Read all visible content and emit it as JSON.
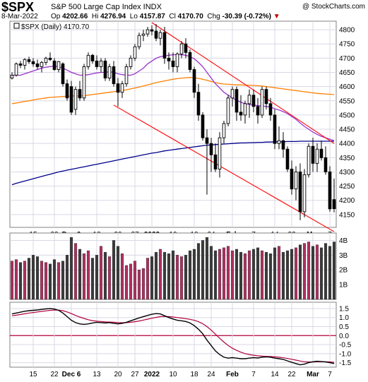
{
  "header": {
    "symbol": "$SPX",
    "description": "S&P 500 Large Cap Index  INDX",
    "date": "8-Mar-2022",
    "open_label": "Op",
    "open": "4202.66",
    "high_label": "Hi",
    "high": "4276.94",
    "low_label": "Lo",
    "low": "4157.87",
    "close_label": "Cl",
    "close": "4170.70",
    "change_label": "Chg",
    "change": "-30.39 (-0.72%)",
    "copyright": "@ StockCharts.com"
  },
  "colors": {
    "up": "#000000",
    "down": "#000000",
    "vol_up": "#b03060",
    "vol_down": "#3a3a3a",
    "ma20": "#9933cc",
    "ma50": "#ff7f00",
    "ma200": "#00008b",
    "trend": "#ff0000",
    "macd": "#000000",
    "signal": "#b0003a",
    "zero": "#b0003a",
    "grid": "#d8d8e6"
  },
  "chart_data": {
    "type": "candlestick",
    "legend": "$SPX (Daily) 4170.70",
    "price_axis": {
      "ylim": [
        4105,
        4830
      ],
      "ticks": [
        4150,
        4200,
        4250,
        4300,
        4350,
        4400,
        4450,
        4500,
        4550,
        4600,
        4650,
        4700,
        4750,
        4800
      ]
    },
    "x_ticks": [
      {
        "i": 5,
        "label": "15",
        "bold": false
      },
      {
        "i": 10,
        "label": "22",
        "bold": false
      },
      {
        "i": 14,
        "label": "Dec 6",
        "bold": true
      },
      {
        "i": 20,
        "label": "13",
        "bold": false
      },
      {
        "i": 25,
        "label": "20",
        "bold": false
      },
      {
        "i": 29,
        "label": "27",
        "bold": false
      },
      {
        "i": 33,
        "label": "2022",
        "bold": true
      },
      {
        "i": 38,
        "label": "10",
        "bold": false
      },
      {
        "i": 43,
        "label": "18",
        "bold": false
      },
      {
        "i": 47,
        "label": "24",
        "bold": false
      },
      {
        "i": 52,
        "label": "Feb",
        "bold": true
      },
      {
        "i": 57,
        "label": "7",
        "bold": false
      },
      {
        "i": 62,
        "label": "14",
        "bold": false
      },
      {
        "i": 66,
        "label": "22",
        "bold": false
      },
      {
        "i": 71,
        "label": "Mar",
        "bold": true
      },
      {
        "i": 75,
        "label": "7",
        "bold": false
      }
    ],
    "candles": [
      [
        4630,
        4650,
        4625,
        4640
      ],
      [
        4640,
        4685,
        4635,
        4680
      ],
      [
        4680,
        4690,
        4665,
        4675
      ],
      [
        4675,
        4700,
        4660,
        4695
      ],
      [
        4695,
        4705,
        4680,
        4688
      ],
      [
        4688,
        4700,
        4670,
        4680
      ],
      [
        4680,
        4695,
        4660,
        4670
      ],
      [
        4670,
        4690,
        4650,
        4685
      ],
      [
        4685,
        4705,
        4675,
        4700
      ],
      [
        4700,
        4720,
        4690,
        4695
      ],
      [
        4690,
        4700,
        4655,
        4660
      ],
      [
        4660,
        4690,
        4650,
        4688
      ],
      [
        4680,
        4685,
        4600,
        4610
      ],
      [
        4610,
        4625,
        4550,
        4560
      ],
      [
        4600,
        4620,
        4500,
        4510
      ],
      [
        4520,
        4600,
        4500,
        4590
      ],
      [
        4590,
        4620,
        4550,
        4560
      ],
      [
        4560,
        4680,
        4550,
        4670
      ],
      [
        4670,
        4720,
        4660,
        4710
      ],
      [
        4710,
        4715,
        4680,
        4690
      ],
      [
        4690,
        4710,
        4660,
        4670
      ],
      [
        4670,
        4700,
        4650,
        4690
      ],
      [
        4690,
        4700,
        4620,
        4630
      ],
      [
        4630,
        4680,
        4620,
        4670
      ],
      [
        4670,
        4690,
        4600,
        4610
      ],
      [
        4610,
        4630,
        4530,
        4580
      ],
      [
        4580,
        4620,
        4560,
        4610
      ],
      [
        4610,
        4680,
        4600,
        4670
      ],
      [
        4670,
        4710,
        4660,
        4700
      ],
      [
        4700,
        4750,
        4690,
        4740
      ],
      [
        4740,
        4790,
        4730,
        4780
      ],
      [
        4780,
        4800,
        4760,
        4785
      ],
      [
        4785,
        4810,
        4775,
        4800
      ],
      [
        4800,
        4815,
        4780,
        4795
      ],
      [
        4795,
        4820,
        4760,
        4770
      ],
      [
        4770,
        4800,
        4745,
        4790
      ],
      [
        4790,
        4810,
        4680,
        4700
      ],
      [
        4700,
        4720,
        4660,
        4690
      ],
      [
        4690,
        4720,
        4650,
        4670
      ],
      [
        4670,
        4720,
        4650,
        4715
      ],
      [
        4715,
        4760,
        4700,
        4750
      ],
      [
        4750,
        4770,
        4700,
        4720
      ],
      [
        4720,
        4730,
        4650,
        4660
      ],
      [
        4660,
        4670,
        4560,
        4580
      ],
      [
        4580,
        4610,
        4480,
        4500
      ],
      [
        4500,
        4510,
        4410,
        4420
      ],
      [
        4420,
        4450,
        4220,
        4400
      ],
      [
        4400,
        4420,
        4300,
        4360
      ],
      [
        4360,
        4400,
        4300,
        4310
      ],
      [
        4310,
        4440,
        4280,
        4420
      ],
      [
        4420,
        4480,
        4400,
        4470
      ],
      [
        4470,
        4570,
        4460,
        4560
      ],
      [
        4560,
        4600,
        4530,
        4590
      ],
      [
        4590,
        4600,
        4480,
        4510
      ],
      [
        4510,
        4570,
        4480,
        4500
      ],
      [
        4500,
        4550,
        4470,
        4540
      ],
      [
        4540,
        4590,
        4490,
        4570
      ],
      [
        4570,
        4590,
        4510,
        4530
      ],
      [
        4530,
        4560,
        4470,
        4500
      ],
      [
        4500,
        4600,
        4490,
        4590
      ],
      [
        4590,
        4600,
        4520,
        4540
      ],
      [
        4540,
        4560,
        4480,
        4500
      ],
      [
        4500,
        4520,
        4380,
        4400
      ],
      [
        4400,
        4460,
        4380,
        4410
      ],
      [
        4410,
        4440,
        4350,
        4380
      ],
      [
        4380,
        4390,
        4300,
        4310
      ],
      [
        4310,
        4340,
        4220,
        4240
      ],
      [
        4240,
        4320,
        4200,
        4300
      ],
      [
        4300,
        4330,
        4130,
        4160
      ],
      [
        4160,
        4310,
        4140,
        4290
      ],
      [
        4290,
        4400,
        4280,
        4390
      ],
      [
        4390,
        4420,
        4300,
        4330
      ],
      [
        4330,
        4400,
        4300,
        4380
      ],
      [
        4380,
        4410,
        4340,
        4350
      ],
      [
        4350,
        4390,
        4290,
        4300
      ],
      [
        4300,
        4320,
        4160,
        4170
      ],
      [
        4202.66,
        4276.94,
        4157.87,
        4170.7
      ]
    ],
    "ma20": [
      4640,
      4640,
      4640,
      4645,
      4650,
      4655,
      4660,
      4665,
      4668,
      4670,
      4672,
      4670,
      4665,
      4658,
      4650,
      4645,
      4640,
      4640,
      4642,
      4645,
      4648,
      4650,
      4650,
      4652,
      4650,
      4645,
      4642,
      4640,
      4640,
      4645,
      4655,
      4665,
      4680,
      4690,
      4700,
      4705,
      4708,
      4710,
      4712,
      4712,
      4712,
      4710,
      4705,
      4698,
      4685,
      4670,
      4650,
      4630,
      4610,
      4595,
      4580,
      4570,
      4560,
      4552,
      4545,
      4540,
      4537,
      4535,
      4533,
      4532,
      4530,
      4528,
      4522,
      4518,
      4512,
      4505,
      4495,
      4485,
      4472,
      4460,
      4450,
      4440,
      4432,
      4425,
      4420,
      4415,
      4410
    ],
    "ma50": [
      4540,
      4542,
      4545,
      4548,
      4550,
      4553,
      4556,
      4558,
      4560,
      4562,
      4563,
      4564,
      4565,
      4566,
      4567,
      4567,
      4567,
      4568,
      4570,
      4572,
      4574,
      4576,
      4578,
      4580,
      4582,
      4584,
      4586,
      4589,
      4592,
      4595,
      4598,
      4602,
      4606,
      4610,
      4614,
      4617,
      4620,
      4623,
      4626,
      4628,
      4630,
      4631,
      4632,
      4631,
      4629,
      4626,
      4622,
      4618,
      4614,
      4611,
      4609,
      4608,
      4607,
      4606,
      4606,
      4605,
      4605,
      4604,
      4603,
      4602,
      4600,
      4598,
      4596,
      4594,
      4592,
      4590,
      4588,
      4586,
      4584,
      4582,
      4580,
      4578,
      4576,
      4575,
      4574,
      4573,
      4572
    ],
    "ma200": [
      4255,
      4260,
      4264,
      4268,
      4272,
      4276,
      4280,
      4284,
      4288,
      4292,
      4296,
      4300,
      4303,
      4306,
      4309,
      4312,
      4315,
      4318,
      4321,
      4324,
      4327,
      4330,
      4333,
      4336,
      4339,
      4342,
      4345,
      4348,
      4351,
      4354,
      4357,
      4360,
      4363,
      4366,
      4368,
      4371,
      4374,
      4376,
      4378,
      4380,
      4382,
      4384,
      4386,
      4388,
      4390,
      4392,
      4394,
      4395,
      4396,
      4397,
      4398,
      4399,
      4400,
      4401,
      4402,
      4402,
      4403,
      4403,
      4404,
      4404,
      4405,
      4405,
      4406,
      4406,
      4406,
      4407,
      4407,
      4407,
      4408,
      4408,
      4408,
      4408,
      4408,
      4408,
      4408,
      4408,
      4408
    ],
    "trendlines": [
      {
        "x1": 33,
        "y1": 4825,
        "x2": 76,
        "y2": 4400
      },
      {
        "x1": 24,
        "y1": 4535,
        "x2": 76,
        "y2": 4090
      }
    ],
    "volume": {
      "axis_ticks": [
        {
          "v": 1,
          "label": "1B"
        },
        {
          "v": 2,
          "label": "2B"
        },
        {
          "v": 3,
          "label": "3B"
        },
        {
          "v": 4,
          "label": "4B"
        }
      ],
      "ylim": [
        0,
        4.5
      ],
      "values": [
        2.6,
        2.7,
        2.5,
        2.6,
        2.8,
        3.0,
        2.9,
        2.6,
        2.5,
        2.4,
        2.7,
        2.5,
        2.6,
        3.0,
        4.2,
        3.8,
        3.4,
        3.1,
        3.3,
        2.8,
        3.0,
        3.6,
        3.2,
        2.9,
        4.0,
        3.6,
        3.1,
        2.3,
        2.4,
        2.6,
        2.0,
        2.1,
        2.8,
        2.9,
        3.2,
        3.4,
        3.2,
        3.1,
        3.3,
        3.0,
        2.9,
        3.0,
        3.3,
        3.4,
        3.8,
        4.0,
        4.2,
        3.6,
        3.3,
        3.4,
        3.5,
        3.6,
        3.3,
        3.4,
        3.2,
        3.1,
        3.3,
        3.4,
        3.5,
        3.3,
        3.2,
        3.1,
        3.5,
        3.6,
        3.2,
        3.3,
        3.4,
        3.5,
        3.7,
        3.8,
        3.9,
        3.6,
        3.7,
        3.5,
        3.8,
        3.6,
        3.9
      ]
    },
    "macd": {
      "axis_ticks": [
        1.5,
        1.0,
        0.5,
        0.0,
        -0.5,
        -1.0,
        -1.5
      ],
      "ylim": [
        -1.75,
        1.85
      ],
      "macd": [
        1.2,
        1.25,
        1.3,
        1.35,
        1.38,
        1.4,
        1.42,
        1.45,
        1.48,
        1.5,
        1.47,
        1.4,
        1.25,
        1.05,
        0.85,
        0.72,
        0.65,
        0.62,
        0.65,
        0.7,
        0.74,
        0.72,
        0.7,
        0.72,
        0.68,
        0.65,
        0.68,
        0.74,
        0.82,
        0.9,
        0.98,
        1.05,
        1.12,
        1.18,
        1.22,
        1.2,
        1.1,
        1.0,
        0.92,
        0.85,
        0.82,
        0.78,
        0.7,
        0.55,
        0.35,
        0.1,
        -0.25,
        -0.55,
        -0.85,
        -1.05,
        -1.2,
        -1.25,
        -1.22,
        -1.25,
        -1.28,
        -1.28,
        -1.25,
        -1.22,
        -1.24,
        -1.2,
        -1.18,
        -1.2,
        -1.25,
        -1.28,
        -1.32,
        -1.4,
        -1.48,
        -1.55,
        -1.62,
        -1.58,
        -1.5,
        -1.45,
        -1.42,
        -1.44,
        -1.46,
        -1.5,
        -1.55
      ],
      "signal": [
        1.1,
        1.13,
        1.17,
        1.21,
        1.25,
        1.28,
        1.31,
        1.34,
        1.37,
        1.4,
        1.41,
        1.41,
        1.38,
        1.31,
        1.22,
        1.12,
        1.03,
        0.95,
        0.88,
        0.83,
        0.8,
        0.78,
        0.76,
        0.75,
        0.74,
        0.72,
        0.71,
        0.72,
        0.74,
        0.77,
        0.81,
        0.86,
        0.91,
        0.96,
        1.01,
        1.05,
        1.06,
        1.05,
        1.03,
        1.0,
        0.97,
        0.94,
        0.9,
        0.85,
        0.77,
        0.66,
        0.5,
        0.3,
        0.08,
        -0.15,
        -0.36,
        -0.55,
        -0.7,
        -0.82,
        -0.92,
        -1.0,
        -1.05,
        -1.09,
        -1.12,
        -1.14,
        -1.15,
        -1.16,
        -1.18,
        -1.2,
        -1.23,
        -1.27,
        -1.31,
        -1.36,
        -1.41,
        -1.45,
        -1.46,
        -1.46,
        -1.45,
        -1.45,
        -1.45,
        -1.46,
        -1.48
      ]
    }
  }
}
